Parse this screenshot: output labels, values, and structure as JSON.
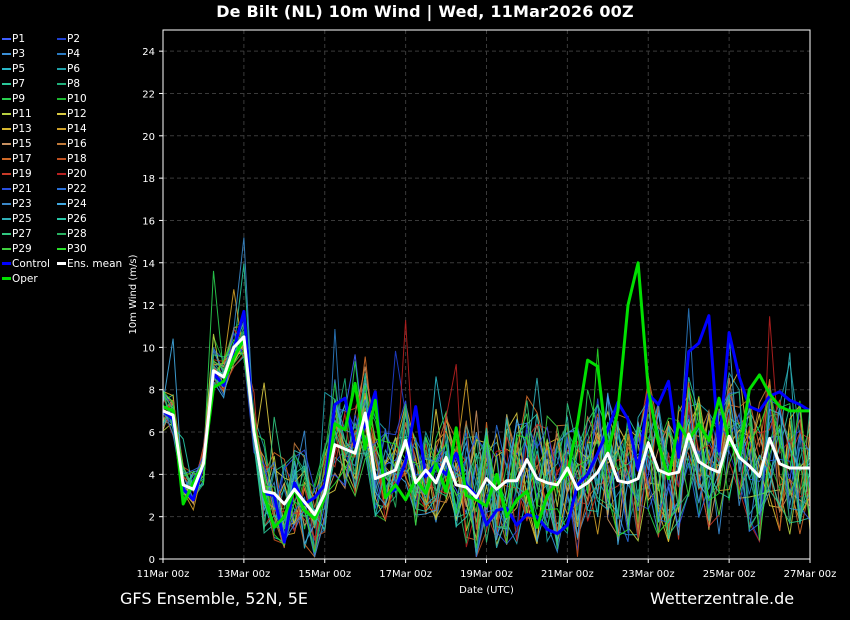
{
  "title": "De Bilt  (NL)  10m Wind | Wed, 11Mar2026 00Z",
  "footer": {
    "left": "GFS Ensemble, 52N, 5E",
    "right": "Wetterzentrale.de"
  },
  "legend": [
    {
      "label": "P1",
      "color": "#3f5fff"
    },
    {
      "label": "P2",
      "color": "#1f3fd0"
    },
    {
      "label": "P3",
      "color": "#3a8fd8"
    },
    {
      "label": "P4",
      "color": "#2a79c0"
    },
    {
      "label": "P5",
      "color": "#2ab8c8"
    },
    {
      "label": "P6",
      "color": "#1fa0a8"
    },
    {
      "label": "P7",
      "color": "#2ac89a"
    },
    {
      "label": "P8",
      "color": "#1fae7a"
    },
    {
      "label": "P9",
      "color": "#2ad050"
    },
    {
      "label": "P10",
      "color": "#1cb830"
    },
    {
      "label": "P11",
      "color": "#b8d040"
    },
    {
      "label": "P12",
      "color": "#d8c840"
    },
    {
      "label": "P13",
      "color": "#d8b830"
    },
    {
      "label": "P14",
      "color": "#d0a028"
    },
    {
      "label": "P15",
      "color": "#c89060"
    },
    {
      "label": "P16",
      "color": "#c07838"
    },
    {
      "label": "P17",
      "color": "#d06a28"
    },
    {
      "label": "P18",
      "color": "#c05020"
    },
    {
      "label": "P19",
      "color": "#c83a28"
    },
    {
      "label": "P20",
      "color": "#b82020"
    },
    {
      "label": "P21",
      "color": "#2a50e0"
    },
    {
      "label": "P22",
      "color": "#2a70d8"
    },
    {
      "label": "P23",
      "color": "#3a88c8"
    },
    {
      "label": "P24",
      "color": "#40a8e0"
    },
    {
      "label": "P25",
      "color": "#30b0b8"
    },
    {
      "label": "P26",
      "color": "#28c8a8"
    },
    {
      "label": "P27",
      "color": "#30c880"
    },
    {
      "label": "P28",
      "color": "#28b060"
    },
    {
      "label": "P29",
      "color": "#40d040"
    },
    {
      "label": "P30",
      "color": "#2ae02a"
    },
    {
      "label": "Control",
      "color": "#0000ff"
    },
    {
      "label": "Ens. mean",
      "color": "#ffffff"
    },
    {
      "label": "Oper",
      "color": "#00e000"
    }
  ],
  "chart_data": {
    "type": "line",
    "xlabel": "Date (UTC)",
    "ylabel": "10m Wind (m/s)",
    "ylim": [
      0,
      25
    ],
    "y_ticks": [
      0,
      2,
      4,
      6,
      8,
      10,
      12,
      14,
      16,
      18,
      20,
      22,
      24
    ],
    "x_ticks": [
      "11Mar 00z",
      "13Mar 00z",
      "15Mar 00z",
      "17Mar 00z",
      "19Mar 00z",
      "21Mar 00z",
      "23Mar 00z",
      "25Mar 00z",
      "27Mar 00z"
    ],
    "x_unit": "hours since 11Mar 00z, 6-hourly steps",
    "grid": true,
    "highlight_series": [
      {
        "name": "Control",
        "color": "#0000ff",
        "width": 3,
        "values": [
          7.0,
          6.6,
          3.3,
          2.8,
          4.5,
          8.8,
          8.2,
          9.9,
          11.7,
          6.0,
          3.1,
          3.0,
          0.8,
          3.6,
          2.6,
          2.9,
          3.5,
          7.3,
          7.6,
          5.3,
          6.3,
          7.9,
          3.0,
          3.3,
          4.6,
          7.2,
          3.9,
          4.5,
          4.0,
          5.0,
          3.5,
          3.0,
          1.6,
          2.3,
          2.4,
          1.6,
          2.1,
          2.0,
          1.4,
          1.2,
          1.6,
          3.5,
          4.0,
          5.0,
          6.1,
          7.4,
          6.6,
          4.2,
          7.8,
          7.3,
          8.4,
          4.8,
          9.8,
          10.2,
          11.5,
          5.1,
          10.7,
          8.6,
          7.2,
          7.0,
          7.7,
          7.9,
          7.5,
          7.3,
          7.0
        ]
      },
      {
        "name": "Oper",
        "color": "#00e000",
        "width": 3,
        "values": [
          7.2,
          7.0,
          2.6,
          3.6,
          4.5,
          8.1,
          8.4,
          9.5,
          10.4,
          6.2,
          3.0,
          1.5,
          2.0,
          3.3,
          2.3,
          1.9,
          2.9,
          6.4,
          6.1,
          8.3,
          5.2,
          7.5,
          2.9,
          3.5,
          2.8,
          3.8,
          3.1,
          4.5,
          3.2,
          6.2,
          3.0,
          2.8,
          2.5,
          4.0,
          2.0,
          2.8,
          3.2,
          1.5,
          3.0,
          3.6,
          4.0,
          6.4,
          9.4,
          9.1,
          5.0,
          7.0,
          12.0,
          14.0,
          8.0,
          5.5,
          3.8,
          6.4,
          5.6,
          6.4,
          5.6,
          7.6,
          5.6,
          4.8,
          8.0,
          8.7,
          7.8,
          7.2,
          7.0,
          7.0,
          7.0
        ]
      },
      {
        "name": "Ens. mean",
        "color": "#ffffff",
        "width": 3,
        "values": [
          7.0,
          6.8,
          3.5,
          3.3,
          4.5,
          8.9,
          8.6,
          10.0,
          10.5,
          6.0,
          3.2,
          3.1,
          2.6,
          3.3,
          2.7,
          2.1,
          3.1,
          5.4,
          5.2,
          5.0,
          6.9,
          3.8,
          4.0,
          4.2,
          5.6,
          3.6,
          4.2,
          3.6,
          4.8,
          3.5,
          3.4,
          2.9,
          3.8,
          3.3,
          3.7,
          3.7,
          4.7,
          3.8,
          3.6,
          3.5,
          4.3,
          3.3,
          3.6,
          4.1,
          5.0,
          3.7,
          3.6,
          3.8,
          5.5,
          4.2,
          4.0,
          4.1,
          5.9,
          4.6,
          4.3,
          4.1,
          5.8,
          4.8,
          4.4,
          3.9,
          5.7,
          4.5,
          4.3,
          4.3,
          4.3
        ]
      }
    ]
  }
}
